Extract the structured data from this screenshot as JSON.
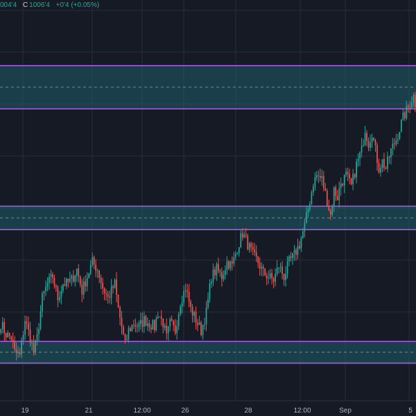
{
  "ohlc_header": {
    "open_value": "004'4",
    "close_label": "C",
    "close_value": "1006'4",
    "change": "+0'4 (+0.05%)"
  },
  "colors": {
    "background": "#161a25",
    "grid": "#2a2e39",
    "up_candle": "#26a69a",
    "down_candle": "#ef5350",
    "zone_fill": "#1f5f6b",
    "zone_border": "#b15cf0",
    "zone_midline": "#8fb5bd",
    "axis_text": "#b2b5be"
  },
  "x_axis": {
    "labels": [
      "19",
      "21",
      "12:00",
      "26",
      "28",
      "12:00",
      "Sep",
      "5"
    ]
  },
  "chart_data": {
    "type": "candlestick",
    "title": "",
    "xlabel": "",
    "ylabel": "",
    "y_unit": "price (unlabeled, chart-relative 0–100)",
    "ylim": [
      0,
      100
    ],
    "grid": true,
    "zones": [
      {
        "name": "",
        "low": 77.5,
        "high": 89.5
      },
      {
        "name": "",
        "low": 44.0,
        "high": 50.5
      },
      {
        "name": "",
        "low": 7.0,
        "high": 13.0
      }
    ],
    "anchors": [
      [
        0,
        18
      ],
      [
        3,
        15
      ],
      [
        6,
        14
      ],
      [
        8,
        10
      ],
      [
        11,
        9
      ],
      [
        14,
        19
      ],
      [
        17,
        14
      ],
      [
        19,
        10
      ],
      [
        21,
        14
      ],
      [
        24,
        25
      ],
      [
        27,
        29
      ],
      [
        30,
        31
      ],
      [
        33,
        25
      ],
      [
        36,
        29
      ],
      [
        38,
        29
      ],
      [
        41,
        30
      ],
      [
        44,
        33
      ],
      [
        47,
        27
      ],
      [
        50,
        31
      ],
      [
        53,
        35
      ],
      [
        56,
        33
      ],
      [
        59,
        28
      ],
      [
        62,
        25
      ],
      [
        66,
        29
      ],
      [
        68,
        22
      ],
      [
        70,
        17
      ],
      [
        72,
        12
      ],
      [
        74,
        16
      ],
      [
        77,
        18
      ],
      [
        80,
        17
      ],
      [
        83,
        19
      ],
      [
        86,
        18
      ],
      [
        89,
        17
      ],
      [
        91,
        21
      ],
      [
        94,
        18
      ],
      [
        96,
        14
      ],
      [
        98,
        18
      ],
      [
        101,
        16
      ],
      [
        104,
        24
      ],
      [
        107,
        28
      ],
      [
        110,
        22
      ],
      [
        113,
        19
      ],
      [
        116,
        16
      ],
      [
        119,
        21
      ],
      [
        122,
        31
      ],
      [
        125,
        33
      ],
      [
        128,
        31
      ],
      [
        131,
        35
      ],
      [
        134,
        34
      ],
      [
        137,
        39
      ],
      [
        140,
        43
      ],
      [
        143,
        40
      ],
      [
        146,
        37
      ],
      [
        149,
        35
      ],
      [
        152,
        32
      ],
      [
        155,
        31
      ],
      [
        158,
        30
      ],
      [
        161,
        34
      ],
      [
        164,
        31
      ],
      [
        167,
        35
      ],
      [
        170,
        37
      ],
      [
        173,
        40
      ],
      [
        176,
        45
      ],
      [
        179,
        52
      ],
      [
        181,
        57
      ],
      [
        183,
        59
      ],
      [
        186,
        58
      ],
      [
        189,
        52
      ],
      [
        191,
        48
      ],
      [
        193,
        55
      ],
      [
        195,
        53
      ],
      [
        197,
        57
      ],
      [
        200,
        59
      ],
      [
        203,
        56
      ],
      [
        206,
        62
      ],
      [
        209,
        66
      ],
      [
        211,
        72
      ],
      [
        213,
        68
      ],
      [
        215,
        71
      ],
      [
        217,
        66
      ],
      [
        219,
        61
      ],
      [
        221,
        63
      ],
      [
        223,
        61
      ],
      [
        226,
        66
      ],
      [
        229,
        69
      ],
      [
        231,
        72
      ],
      [
        233,
        75
      ],
      [
        236,
        78
      ],
      [
        239,
        81
      ],
      [
        240,
        79
      ]
    ]
  }
}
